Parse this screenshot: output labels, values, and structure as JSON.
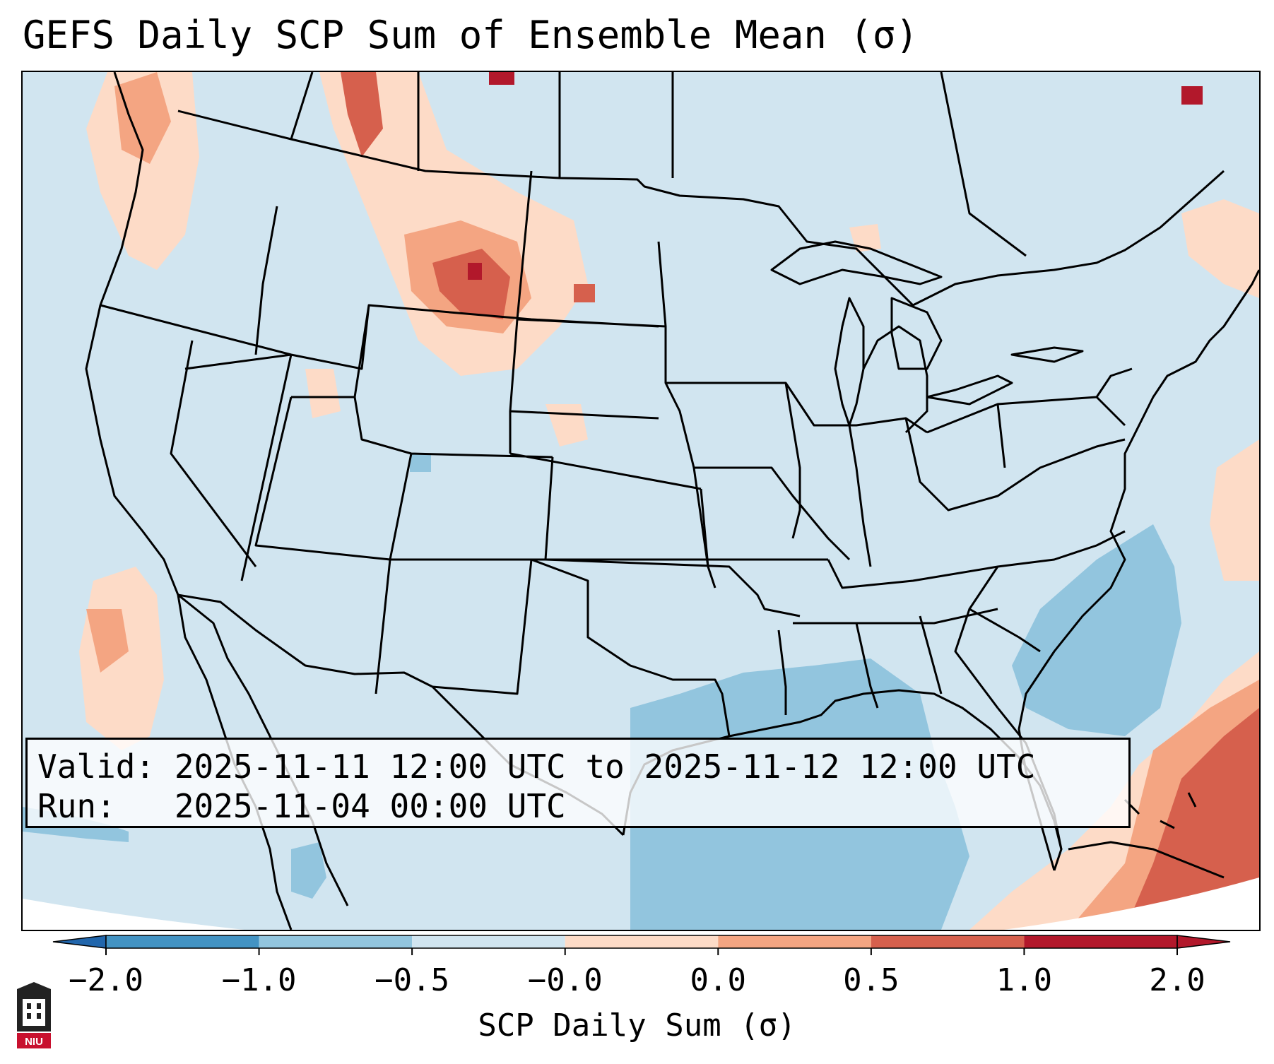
{
  "title": "GEFS Daily SCP Sum of Ensemble Mean (σ)",
  "info": {
    "valid": "Valid: 2025-11-11 12:00 UTC to 2025-11-12 12:00 UTC",
    "run": "Run:   2025-11-04 00:00 UTC"
  },
  "colorbar": {
    "label": "SCP Daily Sum (σ)",
    "ticks": [
      "−2.0",
      "−1.0",
      "−0.5",
      "−0.0",
      "0.0",
      "0.5",
      "1.0",
      "2.0"
    ],
    "colors": [
      "#2166ac",
      "#4393c3",
      "#92c5de",
      "#d1e5f0",
      "#fddbc7",
      "#f4a582",
      "#d6604d",
      "#b2182b"
    ],
    "extend": "both"
  },
  "logo": {
    "text": "NIU",
    "icon": "niu-logo-icon"
  },
  "map": {
    "projection": "Lambert conformal",
    "region": "Contiguous United States",
    "background_level": "−0.0"
  }
}
